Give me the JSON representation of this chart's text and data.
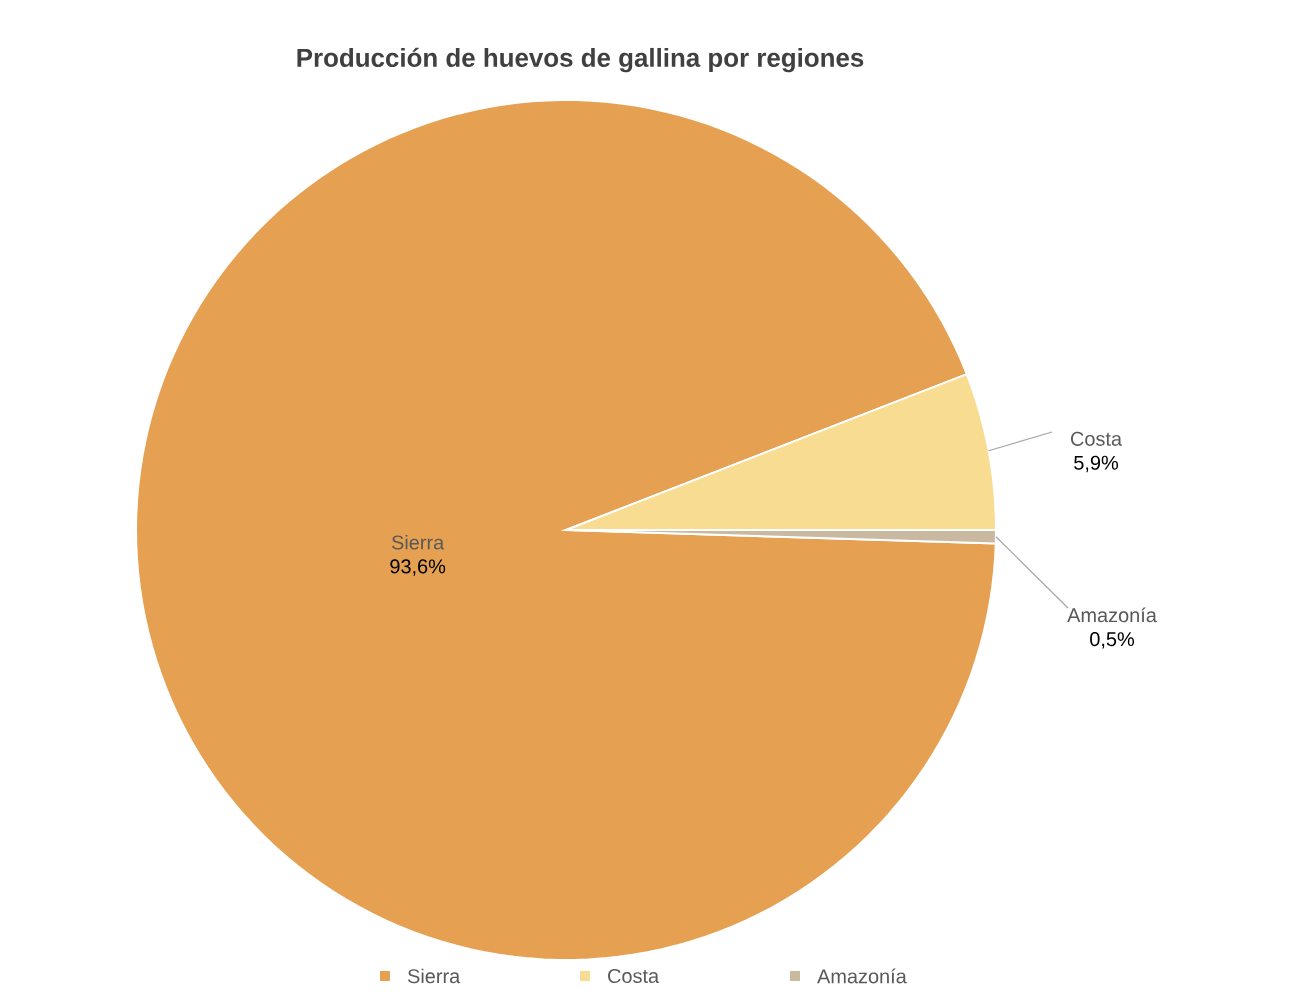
{
  "chart_data": {
    "type": "pie",
    "title": "Producción de huevos de gallina por regiones",
    "categories": [
      "Sierra",
      "Costa",
      "Amazonía"
    ],
    "values": [
      93.6,
      5.9,
      0.5
    ],
    "value_labels": [
      "93,6%",
      "5,9%",
      "0,5%"
    ],
    "colors": [
      "#e5a052",
      "#f7dc92",
      "#c9b9a0"
    ],
    "legend": "bottom"
  }
}
